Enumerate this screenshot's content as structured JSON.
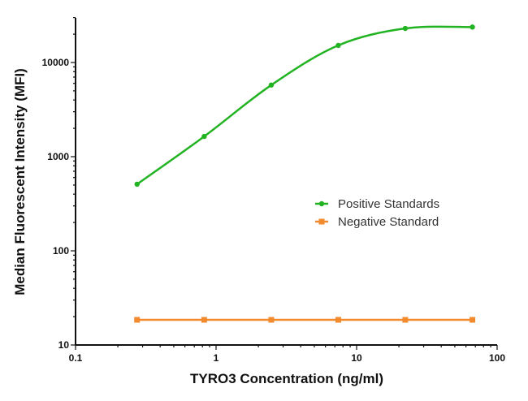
{
  "chart_data": {
    "type": "line",
    "xlabel": "TYRO3 Concentration (ng/ml)",
    "ylabel": "Median Fluorescent Intensity (MFI)",
    "xscale": "log",
    "yscale": "log",
    "xlim": [
      0.1,
      100
    ],
    "ylim": [
      10,
      30000
    ],
    "xticks": [
      "0.1",
      "1",
      "10",
      "100"
    ],
    "yticks": [
      "10",
      "100",
      "1000",
      "10000"
    ],
    "grid": false,
    "legend_position": "center-right",
    "x": [
      0.274,
      0.823,
      2.47,
      7.41,
      22.2,
      66.7
    ],
    "series": [
      {
        "name": "Positive Standards",
        "color": "#22b322",
        "values": [
          510,
          1640,
          5760,
          15200,
          23000,
          23800
        ]
      },
      {
        "name": "Negative Standard",
        "color": "#f28a2e",
        "values": [
          18.5,
          18.5,
          18.5,
          18.5,
          18.5,
          18.5
        ]
      }
    ]
  }
}
